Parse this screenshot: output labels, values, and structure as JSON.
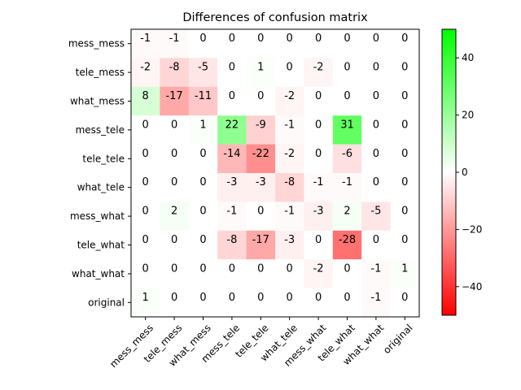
{
  "chart_data": {
    "type": "heatmap",
    "title": "Differences of confusion matrix",
    "row_labels": [
      "mess_mess",
      "tele_mess",
      "what_mess",
      "mess_tele",
      "tele_tele",
      "what_tele",
      "mess_what",
      "tele_what",
      "what_what",
      "original"
    ],
    "col_labels": [
      "mess_mess",
      "tele_mess",
      "what_mess",
      "mess_tele",
      "tele_tele",
      "what_tele",
      "mess_what",
      "tele_what",
      "what_what",
      "original"
    ],
    "values": [
      [
        -1,
        -1,
        0,
        0,
        0,
        0,
        0,
        0,
        0,
        0
      ],
      [
        -2,
        -8,
        -5,
        0,
        1,
        0,
        -2,
        0,
        0,
        0
      ],
      [
        8,
        -17,
        -11,
        0,
        0,
        -2,
        0,
        0,
        0,
        0
      ],
      [
        0,
        0,
        1,
        22,
        -9,
        -1,
        0,
        31,
        0,
        0
      ],
      [
        0,
        0,
        0,
        -14,
        -22,
        -2,
        0,
        -6,
        0,
        0
      ],
      [
        0,
        0,
        0,
        -3,
        -3,
        -8,
        -1,
        -1,
        0,
        0
      ],
      [
        0,
        2,
        0,
        -1,
        0,
        -1,
        -3,
        2,
        -5,
        0
      ],
      [
        0,
        0,
        0,
        -8,
        -17,
        -3,
        0,
        -28,
        0,
        0
      ],
      [
        0,
        0,
        0,
        0,
        0,
        0,
        -2,
        0,
        -1,
        1
      ],
      [
        1,
        0,
        0,
        0,
        0,
        0,
        0,
        0,
        -1,
        0
      ]
    ],
    "color_range": [
      -50,
      50
    ],
    "colorbar_ticks": [
      40,
      20,
      0,
      -20,
      -40
    ],
    "colorbar_tick_labels": [
      "40",
      "20",
      "0",
      "−20",
      "−40"
    ],
    "colors": {
      "negative": "#ff0000",
      "zero": "#ffffff",
      "positive": "#00ff00"
    },
    "grid": false
  }
}
